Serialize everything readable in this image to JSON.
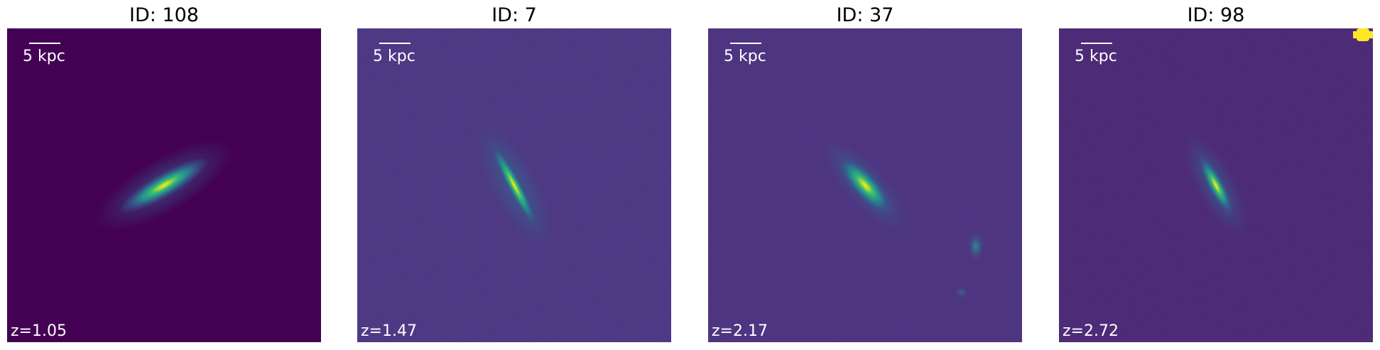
{
  "panels": [
    {
      "title": "ID: 108",
      "scale_label": "5 kpc",
      "redshift": "z=1.05"
    },
    {
      "title": "ID: 7",
      "scale_label": "5 kpc",
      "redshift": "z=1.47"
    },
    {
      "title": "ID: 37",
      "scale_label": "5 kpc",
      "redshift": "z=2.17"
    },
    {
      "title": "ID: 98",
      "scale_label": "5 kpc",
      "redshift": "z=2.72"
    }
  ]
}
